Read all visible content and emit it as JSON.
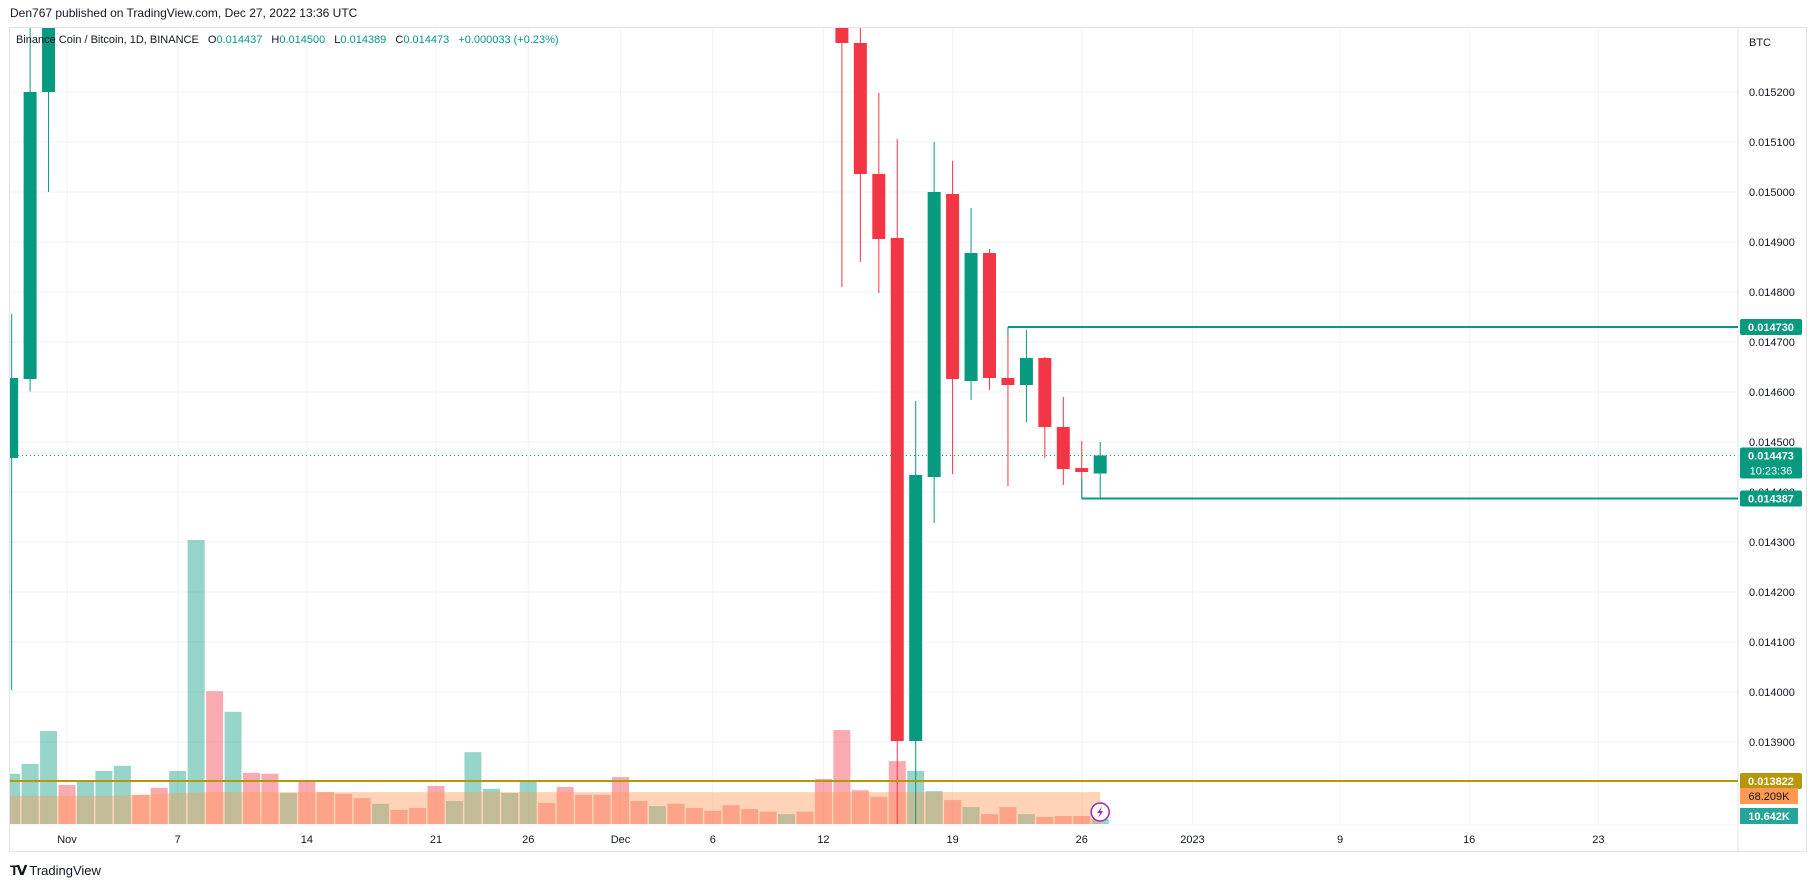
{
  "header": {
    "published": "Den767 published on TradingView.com, Dec 27, 2022 13:36 UTC"
  },
  "legend": {
    "symbol": "Binance Coin / Bitcoin, 1D, BINANCE",
    "open_key": "O",
    "open": "0.014437",
    "high_key": "H",
    "high": "0.014500",
    "low_key": "L",
    "low": "0.014389",
    "close_key": "C",
    "close": "0.014473",
    "change": "+0.000033 (+0.23%)"
  },
  "footer": {
    "logo_text": "TradingView"
  },
  "colors": {
    "up": "#089981",
    "down": "#F23645",
    "volume_ma": "#FF9850",
    "level_line": "#B8960A",
    "signal_icon": "#9C27B0"
  },
  "chart_data": {
    "type": "candlestick",
    "currency_label": "BTC",
    "ylim": [
      0.013736,
      0.01533
    ],
    "grid": true,
    "price_ticks": [
      "0.015200",
      "0.015100",
      "0.015000",
      "0.014900",
      "0.014800",
      "0.014700",
      "0.014600",
      "0.014500",
      "0.014400",
      "0.014300",
      "0.014200",
      "0.014100",
      "0.014000",
      "0.013900"
    ],
    "time_ticks": [
      {
        "label": "Nov",
        "date": "2022-11-01"
      },
      {
        "label": "7",
        "date": "2022-11-07"
      },
      {
        "label": "14",
        "date": "2022-11-14"
      },
      {
        "label": "21",
        "date": "2022-11-21"
      },
      {
        "label": "26",
        "date": "2022-11-26"
      },
      {
        "label": "Dec",
        "date": "2022-12-01"
      },
      {
        "label": "6",
        "date": "2022-12-06"
      },
      {
        "label": "12",
        "date": "2022-12-12"
      },
      {
        "label": "19",
        "date": "2022-12-19"
      },
      {
        "label": "26",
        "date": "2022-12-26"
      },
      {
        "label": "2023",
        "date": "2023-01-01"
      },
      {
        "label": "9",
        "date": "2023-01-09"
      },
      {
        "label": "16",
        "date": "2023-01-16"
      },
      {
        "label": "23",
        "date": "2023-01-23"
      }
    ],
    "candles": [
      {
        "date": "2022-10-29",
        "open": 0.014468,
        "high": 0.014756,
        "low": 0.014004,
        "close": 0.014628
      },
      {
        "date": "2022-10-30",
        "open": 0.014626,
        "high": null,
        "low": 0.014601,
        "close": 0.0152
      },
      {
        "date": "2022-10-31",
        "open": 0.0152,
        "high": null,
        "low": 0.015,
        "close": null
      },
      {
        "date": "2022-12-13",
        "open": null,
        "high": null,
        "low": 0.01481,
        "close": 0.015298
      },
      {
        "date": "2022-12-14",
        "open": 0.015298,
        "high": null,
        "low": 0.01486,
        "close": 0.015036
      },
      {
        "date": "2022-12-15",
        "open": 0.015036,
        "high": 0.015198,
        "low": 0.014798,
        "close": 0.014906
      },
      {
        "date": "2022-12-16",
        "open": 0.014908,
        "high": 0.015106,
        "low": null,
        "close": 0.013902
      },
      {
        "date": "2022-12-17",
        "open": 0.013902,
        "high": 0.014582,
        "low": null,
        "close": 0.014434
      },
      {
        "date": "2022-12-18",
        "open": 0.01443,
        "high": 0.0151,
        "low": 0.014338,
        "close": 0.015
      },
      {
        "date": "2022-12-19",
        "open": 0.014996,
        "high": 0.015062,
        "low": 0.014436,
        "close": 0.014626
      },
      {
        "date": "2022-12-20",
        "open": 0.014622,
        "high": 0.014968,
        "low": 0.014584,
        "close": 0.014878
      },
      {
        "date": "2022-12-21",
        "open": 0.014878,
        "high": 0.014886,
        "low": 0.014604,
        "close": 0.014628
      },
      {
        "date": "2022-12-22",
        "open": 0.014628,
        "high": 0.01473,
        "low": 0.014412,
        "close": 0.014614
      },
      {
        "date": "2022-12-23",
        "open": 0.014614,
        "high": 0.014724,
        "low": 0.01454,
        "close": 0.014668
      },
      {
        "date": "2022-12-24",
        "open": 0.014668,
        "high": 0.01467,
        "low": 0.014468,
        "close": 0.01453
      },
      {
        "date": "2022-12-25",
        "open": 0.01453,
        "high": 0.01459,
        "low": 0.014414,
        "close": 0.014446
      },
      {
        "date": "2022-12-26",
        "open": 0.014448,
        "high": 0.014502,
        "low": 0.014387,
        "close": 0.01444
      },
      {
        "date": "2022-12-27",
        "open": 0.014437,
        "high": 0.0145,
        "low": 0.014389,
        "close": 0.014473
      }
    ],
    "volume": {
      "start_date": "2022-10-29",
      "values_k": [
        107,
        128,
        198,
        83,
        90,
        113,
        124,
        62,
        77,
        113,
        605,
        283,
        239,
        109,
        107,
        66,
        92,
        68,
        64,
        55,
        43,
        30,
        34,
        81,
        49,
        153,
        75,
        66,
        90,
        45,
        79,
        62,
        62,
        100,
        49,
        38,
        43,
        34,
        28,
        40,
        32,
        26,
        21,
        26,
        96,
        200,
        72,
        58,
        134,
        113,
        70,
        51,
        36,
        21,
        36,
        21,
        15,
        17,
        17,
        10.642
      ],
      "direction": [
        "up",
        "up",
        "up",
        "down",
        "up",
        "up",
        "up",
        "down",
        "down",
        "up",
        "up",
        "down",
        "up",
        "down",
        "down",
        "up",
        "down",
        "down",
        "down",
        "down",
        "up",
        "down",
        "down",
        "down",
        "up",
        "up",
        "up",
        "up",
        "up",
        "down",
        "down",
        "down",
        "down",
        "down",
        "down",
        "up",
        "down",
        "down",
        "down",
        "down",
        "down",
        "down",
        "up",
        "down",
        "down",
        "down",
        "down",
        "down",
        "down",
        "up",
        "up",
        "down",
        "up",
        "down",
        "down",
        "up",
        "down",
        "down",
        "down",
        "up"
      ],
      "ma_k": [
        60,
        60,
        60,
        60,
        60,
        60,
        61,
        62,
        64,
        66,
        67,
        68,
        68,
        68,
        68,
        68,
        68,
        68,
        68,
        68,
        68,
        68,
        68,
        68,
        68,
        68,
        68,
        68,
        68,
        68,
        68,
        68,
        68,
        68,
        68,
        68,
        68,
        68,
        68,
        68,
        68,
        68,
        68,
        68,
        68,
        68,
        68,
        68,
        68,
        68,
        68,
        68,
        68,
        68,
        68,
        68,
        68,
        68,
        68,
        68.209
      ]
    },
    "current_price": {
      "value": 0.014473,
      "label": "0.014473",
      "countdown": "10:23:36"
    },
    "levels": [
      {
        "name": "resistance",
        "value": 0.01473,
        "label": "0.014730",
        "from": "2022-12-22",
        "color": "#089981"
      },
      {
        "name": "support",
        "value": 0.014387,
        "label": "0.014387",
        "from": "2022-12-26",
        "color": "#089981"
      },
      {
        "name": "horizontal-line",
        "value": 0.013822,
        "label": "0.013822",
        "from": null,
        "color": "#B8960A"
      }
    ],
    "volume_labels": {
      "ma": "68.209K",
      "last": "10.642K"
    }
  }
}
